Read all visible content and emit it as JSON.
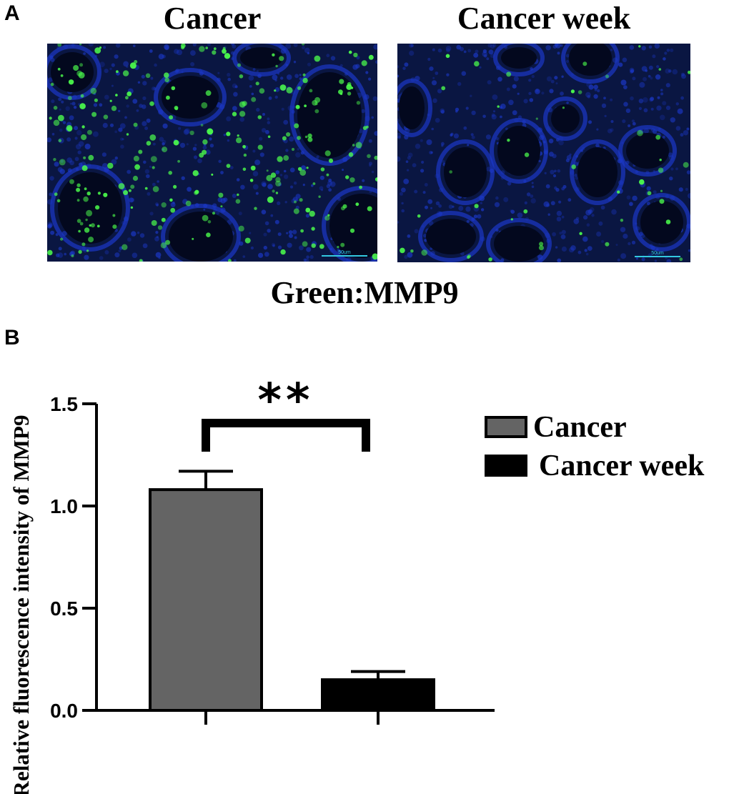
{
  "panel_a": {
    "letter": "A",
    "images": [
      {
        "title": "Cancer",
        "scale_bar": "50um"
      },
      {
        "title": "Cancer week",
        "scale_bar": "50um"
      }
    ],
    "caption": "Green:MMP9"
  },
  "panel_b": {
    "letter": "B"
  },
  "colors": {
    "background": "#0a1642",
    "nuclei": "#1b38c8",
    "stain": "#4cff4c",
    "bar_cancer": "#646464",
    "bar_cancer_week": "#000000",
    "scale_bar": "#33c8e0"
  },
  "chart_data": {
    "type": "bar",
    "categories": [
      "Cancer",
      "Cancer week"
    ],
    "values": [
      1.08,
      0.15
    ],
    "errors": [
      0.09,
      0.04
    ],
    "ylabel": "Relative fluorescence intensity of MMP9",
    "ylim": [
      0,
      1.5
    ],
    "yticks": [
      "0.0",
      "0.5",
      "1.0",
      "1.5"
    ],
    "legend": [
      "Cancer",
      "Cancer week"
    ],
    "legend_position": "right",
    "significance": "**",
    "bar_colors": [
      "#646464",
      "#000000"
    ]
  }
}
